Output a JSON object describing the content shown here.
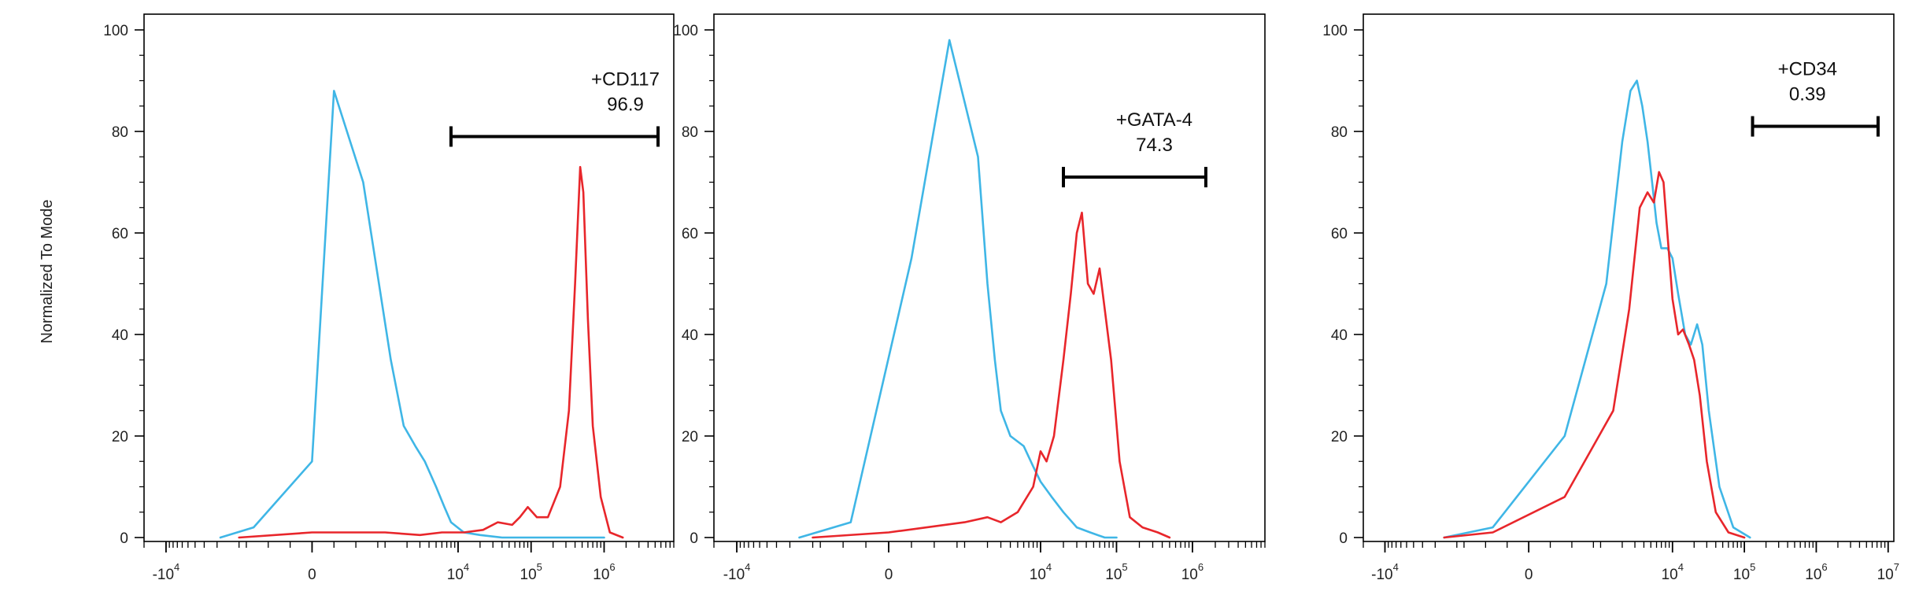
{
  "y_axis_label": "Normalized To Mode",
  "colors": {
    "control": "#3fb6e6",
    "stained": "#e8262b",
    "axis": "#000000",
    "gate": "#000000"
  },
  "chart_data": [
    {
      "type": "line",
      "panel": "CD117",
      "ylabel": "Normalized To Mode",
      "ylim": [
        0,
        100
      ],
      "y_ticks": [
        0,
        20,
        40,
        60,
        80,
        100
      ],
      "x_scale": "biexponential",
      "x_ticks": [
        {
          "value": -10000,
          "base": "-10",
          "exp": "4"
        },
        {
          "value": 0,
          "base": "0",
          "exp": ""
        },
        {
          "value": 10000,
          "base": "10",
          "exp": "4"
        },
        {
          "value": 100000,
          "base": "10",
          "exp": "5"
        },
        {
          "value": 1000000,
          "base": "10",
          "exp": "6"
        }
      ],
      "gate": {
        "name": "+CD117",
        "percent": "96.9",
        "x_start": 8000,
        "x_end": 8000000,
        "y": 79
      },
      "series": [
        {
          "role": "control",
          "x": [
            -1800,
            -800,
            0,
            300,
            700,
            1200,
            1800,
            2600,
            3500,
            5000,
            6500,
            8000,
            12000,
            20000,
            40000,
            100000,
            1000000
          ],
          "y": [
            0,
            2,
            15,
            88,
            70,
            35,
            22,
            18,
            15,
            10,
            6,
            3,
            1,
            0.5,
            0,
            0,
            0
          ]
        },
        {
          "role": "stained",
          "x": [
            -1000,
            0,
            1000,
            3000,
            6000,
            12000,
            22000,
            35000,
            55000,
            70000,
            90000,
            120000,
            170000,
            250000,
            330000,
            400000,
            470000,
            520000,
            600000,
            700000,
            900000,
            1200000,
            1800000
          ],
          "y": [
            0,
            1,
            1,
            0.5,
            1,
            1,
            1.5,
            3,
            2.5,
            4,
            6,
            4,
            4,
            10,
            25,
            50,
            73,
            68,
            43,
            22,
            8,
            1,
            0
          ]
        }
      ]
    },
    {
      "type": "line",
      "panel": "GATA-4",
      "ylim": [
        0,
        100
      ],
      "y_ticks": [
        0,
        20,
        40,
        60,
        80,
        100
      ],
      "x_scale": "biexponential",
      "x_ticks": [
        {
          "value": -10000,
          "base": "-10",
          "exp": "4"
        },
        {
          "value": 0,
          "base": "0",
          "exp": ""
        },
        {
          "value": 10000,
          "base": "10",
          "exp": "4"
        },
        {
          "value": 100000,
          "base": "10",
          "exp": "5"
        },
        {
          "value": 1000000,
          "base": "10",
          "exp": "6"
        }
      ],
      "gate": {
        "name": "+GATA-4",
        "percent": "74.3",
        "x_start": 20000,
        "x_end": 1500000,
        "y": 71
      },
      "series": [
        {
          "role": "control",
          "x": [
            -1500,
            -500,
            300,
            800,
            1500,
            2000,
            2500,
            3000,
            4000,
            6000,
            8000,
            10000,
            14000,
            20000,
            30000,
            45000,
            70000,
            100000
          ],
          "y": [
            0,
            3,
            55,
            98,
            75,
            50,
            35,
            25,
            20,
            18,
            14,
            11,
            8,
            5,
            2,
            1,
            0,
            0
          ]
        },
        {
          "role": "stained",
          "x": [
            -1000,
            0,
            1000,
            2000,
            3000,
            5000,
            8000,
            10000,
            12000,
            15000,
            20000,
            25000,
            30000,
            35000,
            42000,
            50000,
            60000,
            70000,
            85000,
            110000,
            150000,
            220000,
            350000,
            500000
          ],
          "y": [
            0,
            1,
            3,
            4,
            3,
            5,
            10,
            17,
            15,
            20,
            35,
            48,
            60,
            64,
            50,
            48,
            53,
            45,
            35,
            15,
            4,
            2,
            1,
            0
          ]
        }
      ]
    },
    {
      "type": "line",
      "panel": "CD34",
      "ylim": [
        0,
        100
      ],
      "y_ticks": [
        0,
        20,
        40,
        60,
        80,
        100
      ],
      "x_scale": "biexponential",
      "x_ticks": [
        {
          "value": -10000,
          "base": "-10",
          "exp": "4"
        },
        {
          "value": 0,
          "base": "0",
          "exp": ""
        },
        {
          "value": 10000,
          "base": "10",
          "exp": "4"
        },
        {
          "value": 100000,
          "base": "10",
          "exp": "5"
        },
        {
          "value": 1000000,
          "base": "10",
          "exp": "6"
        },
        {
          "value": 10000000,
          "base": "10",
          "exp": "7"
        }
      ],
      "gate": {
        "name": "+CD34",
        "percent": "0.39",
        "x_start": 130000,
        "x_end": 8000000,
        "y": 81
      },
      "series": [
        {
          "role": "control",
          "x": [
            -1500,
            -500,
            500,
            1200,
            2000,
            2600,
            3200,
            3800,
            4500,
            5200,
            6000,
            7000,
            8500,
            10000,
            12000,
            15000,
            18000,
            22000,
            26000,
            32000,
            45000,
            70000,
            120000
          ],
          "y": [
            0,
            2,
            20,
            50,
            78,
            88,
            90,
            85,
            78,
            70,
            62,
            57,
            57,
            55,
            48,
            40,
            38,
            42,
            38,
            25,
            10,
            2,
            0
          ]
        },
        {
          "role": "stained",
          "x": [
            -1500,
            -500,
            500,
            1500,
            2500,
            3500,
            4500,
            5500,
            6500,
            7500,
            8500,
            10000,
            12000,
            14000,
            17000,
            20000,
            24000,
            30000,
            40000,
            60000,
            100000
          ],
          "y": [
            0,
            1,
            8,
            25,
            45,
            65,
            68,
            66,
            72,
            70,
            60,
            47,
            40,
            41,
            38,
            35,
            28,
            15,
            5,
            1,
            0
          ]
        }
      ]
    }
  ]
}
